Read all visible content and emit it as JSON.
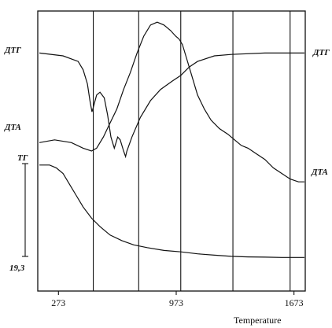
{
  "chart_data": {
    "type": "line",
    "title": "",
    "xlabel": "Temperature",
    "ylabel": "",
    "x_ticks": [
      {
        "value": 273,
        "label": "273"
      },
      {
        "value": 973,
        "label": "973"
      },
      {
        "value": 1673,
        "label": "1673"
      }
    ],
    "xlim": [
      150,
      1740
    ],
    "vertical_gridlines_x": [
      480,
      750,
      1000,
      1310,
      1650
    ],
    "grid": true,
    "series": [
      {
        "name": "ДТГ",
        "points": [
          [
            160,
            0.85
          ],
          [
            300,
            0.84
          ],
          [
            390,
            0.82
          ],
          [
            420,
            0.79
          ],
          [
            445,
            0.74
          ],
          [
            460,
            0.68
          ],
          [
            472,
            0.64
          ],
          [
            482,
            0.66
          ],
          [
            500,
            0.7
          ],
          [
            520,
            0.71
          ],
          [
            545,
            0.69
          ],
          [
            565,
            0.63
          ],
          [
            585,
            0.55
          ],
          [
            605,
            0.51
          ],
          [
            625,
            0.55
          ],
          [
            640,
            0.54
          ],
          [
            660,
            0.5
          ],
          [
            672,
            0.48
          ],
          [
            680,
            0.5
          ],
          [
            710,
            0.55
          ],
          [
            760,
            0.62
          ],
          [
            820,
            0.68
          ],
          [
            880,
            0.72
          ],
          [
            950,
            0.75
          ],
          [
            1000,
            0.77
          ],
          [
            1050,
            0.8
          ],
          [
            1100,
            0.82
          ],
          [
            1200,
            0.84
          ],
          [
            1300,
            0.845
          ],
          [
            1500,
            0.85
          ],
          [
            1735,
            0.85
          ]
        ]
      },
      {
        "name": "ДТА",
        "points": [
          [
            160,
            0.53
          ],
          [
            250,
            0.54
          ],
          [
            350,
            0.53
          ],
          [
            420,
            0.51
          ],
          [
            470,
            0.5
          ],
          [
            500,
            0.51
          ],
          [
            540,
            0.55
          ],
          [
            580,
            0.6
          ],
          [
            620,
            0.65
          ],
          [
            660,
            0.72
          ],
          [
            700,
            0.78
          ],
          [
            740,
            0.85
          ],
          [
            780,
            0.91
          ],
          [
            820,
            0.95
          ],
          [
            860,
            0.96
          ],
          [
            900,
            0.95
          ],
          [
            940,
            0.93
          ],
          [
            970,
            0.91
          ],
          [
            990,
            0.9
          ],
          [
            1010,
            0.88
          ],
          [
            1030,
            0.84
          ],
          [
            1060,
            0.78
          ],
          [
            1100,
            0.7
          ],
          [
            1140,
            0.65
          ],
          [
            1180,
            0.61
          ],
          [
            1230,
            0.58
          ],
          [
            1280,
            0.56
          ],
          [
            1320,
            0.54
          ],
          [
            1360,
            0.52
          ],
          [
            1400,
            0.51
          ],
          [
            1450,
            0.49
          ],
          [
            1500,
            0.47
          ],
          [
            1550,
            0.44
          ],
          [
            1600,
            0.42
          ],
          [
            1650,
            0.4
          ],
          [
            1700,
            0.39
          ],
          [
            1735,
            0.39
          ]
        ]
      },
      {
        "name": "ТГ",
        "points": [
          [
            160,
            0.45
          ],
          [
            220,
            0.45
          ],
          [
            260,
            0.44
          ],
          [
            300,
            0.42
          ],
          [
            340,
            0.38
          ],
          [
            380,
            0.34
          ],
          [
            420,
            0.3
          ],
          [
            470,
            0.26
          ],
          [
            520,
            0.23
          ],
          [
            580,
            0.2
          ],
          [
            650,
            0.18
          ],
          [
            720,
            0.165
          ],
          [
            800,
            0.155
          ],
          [
            900,
            0.145
          ],
          [
            1000,
            0.14
          ],
          [
            1100,
            0.133
          ],
          [
            1200,
            0.128
          ],
          [
            1300,
            0.124
          ],
          [
            1400,
            0.122
          ],
          [
            1500,
            0.121
          ],
          [
            1600,
            0.12
          ],
          [
            1735,
            0.12
          ]
        ]
      }
    ],
    "labels": {
      "dtg_left": "ДТГ",
      "dtg_right": "ДТГ",
      "dta_left": "ДТА",
      "dta_right": "ДТА",
      "tg": "ТГ",
      "scale_value": "19,3"
    }
  }
}
